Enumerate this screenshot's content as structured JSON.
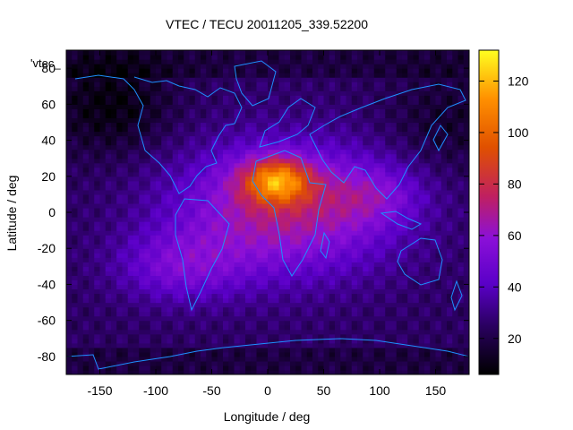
{
  "chart_data": {
    "type": "heatmap",
    "title": "VTEC / TECU 20011205_339.52200",
    "xlabel": "Longitude / deg",
    "ylabel": "Latitude / deg",
    "legend_entry": "'vtec_",
    "xlim": [
      -180,
      180
    ],
    "ylim": [
      -90,
      90
    ],
    "x_ticks": [
      -150,
      -100,
      -50,
      0,
      50,
      100,
      150
    ],
    "y_ticks": [
      -80,
      -60,
      -40,
      -20,
      0,
      20,
      40,
      60,
      80
    ],
    "colorbar": {
      "min": 6,
      "max": 132,
      "ticks": [
        20,
        40,
        60,
        80,
        100,
        120
      ]
    },
    "grid_lon_step": 5,
    "grid_lat_step": 2.5,
    "peak": {
      "lon": 10,
      "lat": 18,
      "value": 130
    },
    "coastline_color": "#1e90ff",
    "colormap": [
      "#000000",
      "#2a0060",
      "#5a00c8",
      "#8b10d8",
      "#c02060",
      "#e05000",
      "#ff9000",
      "#ffff20"
    ]
  }
}
